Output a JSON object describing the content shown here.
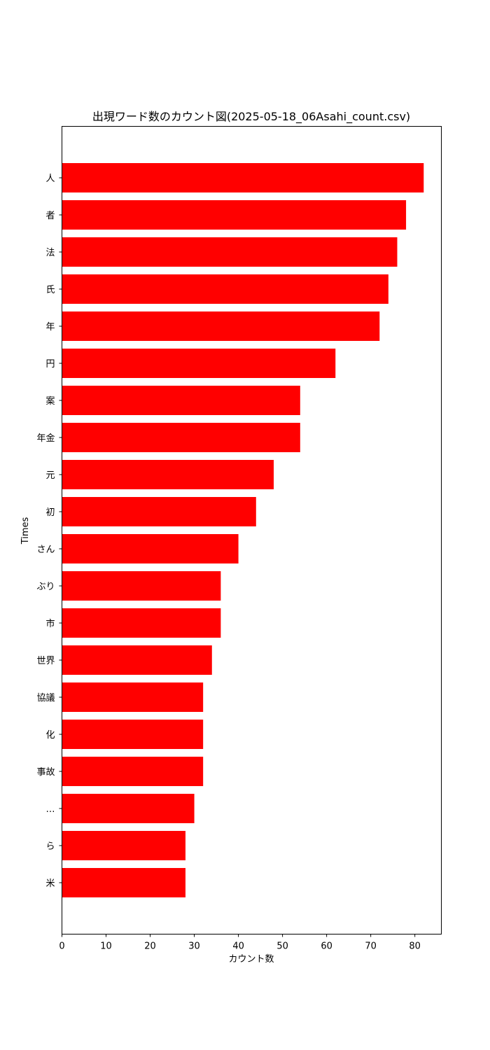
{
  "chart_data": {
    "type": "bar",
    "orientation": "horizontal",
    "title": "出現ワード数のカウント図(2025-05-18_06Asahi_count.csv)",
    "xlabel": "カウント数",
    "ylabel": "Times",
    "xlim": [
      0,
      86
    ],
    "xticks": [
      0,
      10,
      20,
      30,
      40,
      50,
      60,
      70,
      80
    ],
    "grid": false,
    "bar_color": "#ff0000",
    "categories": [
      "人",
      "者",
      "法",
      "氏",
      "年",
      "円",
      "案",
      "年金",
      "元",
      "初",
      "さん",
      "ぶり",
      "市",
      "世界",
      "協議",
      "化",
      "事故",
      "…",
      "ら",
      "米"
    ],
    "values": [
      82,
      78,
      76,
      74,
      72,
      62,
      54,
      54,
      48,
      44,
      40,
      36,
      36,
      34,
      32,
      32,
      32,
      30,
      28,
      28
    ]
  }
}
